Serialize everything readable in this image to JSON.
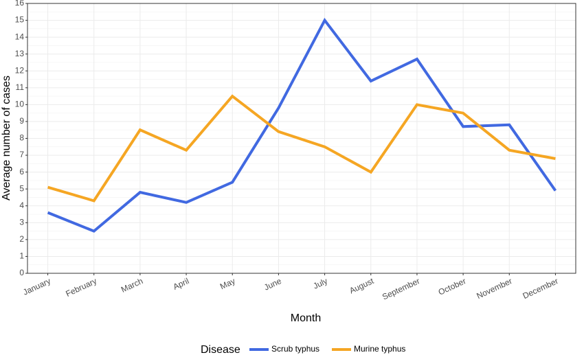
{
  "chart_data": {
    "type": "line",
    "categories": [
      "January",
      "February",
      "March",
      "April",
      "May",
      "June",
      "July",
      "August",
      "September",
      "October",
      "November",
      "December"
    ],
    "series": [
      {
        "name": "Scrub typhus",
        "color": "#4169E1",
        "values": [
          3.6,
          2.5,
          4.8,
          4.2,
          5.4,
          9.8,
          15.0,
          11.4,
          12.7,
          8.7,
          8.8,
          4.9
        ]
      },
      {
        "name": "Murine typhus",
        "color": "#F5A623",
        "values": [
          5.1,
          4.3,
          8.5,
          7.3,
          10.5,
          8.4,
          7.5,
          6.0,
          10.0,
          9.5,
          7.3,
          6.8
        ]
      }
    ],
    "xlabel": "Month",
    "ylabel": "Average number of cases",
    "ylim": [
      0,
      16
    ],
    "yticks": [
      "0",
      "1",
      "2",
      "3",
      "4",
      "5",
      "6",
      "7",
      "8",
      "9",
      "10",
      "11",
      "12",
      "13",
      "14",
      "15",
      "16"
    ],
    "grid": true,
    "legend_title": "Disease",
    "legend_position": "bottom"
  }
}
